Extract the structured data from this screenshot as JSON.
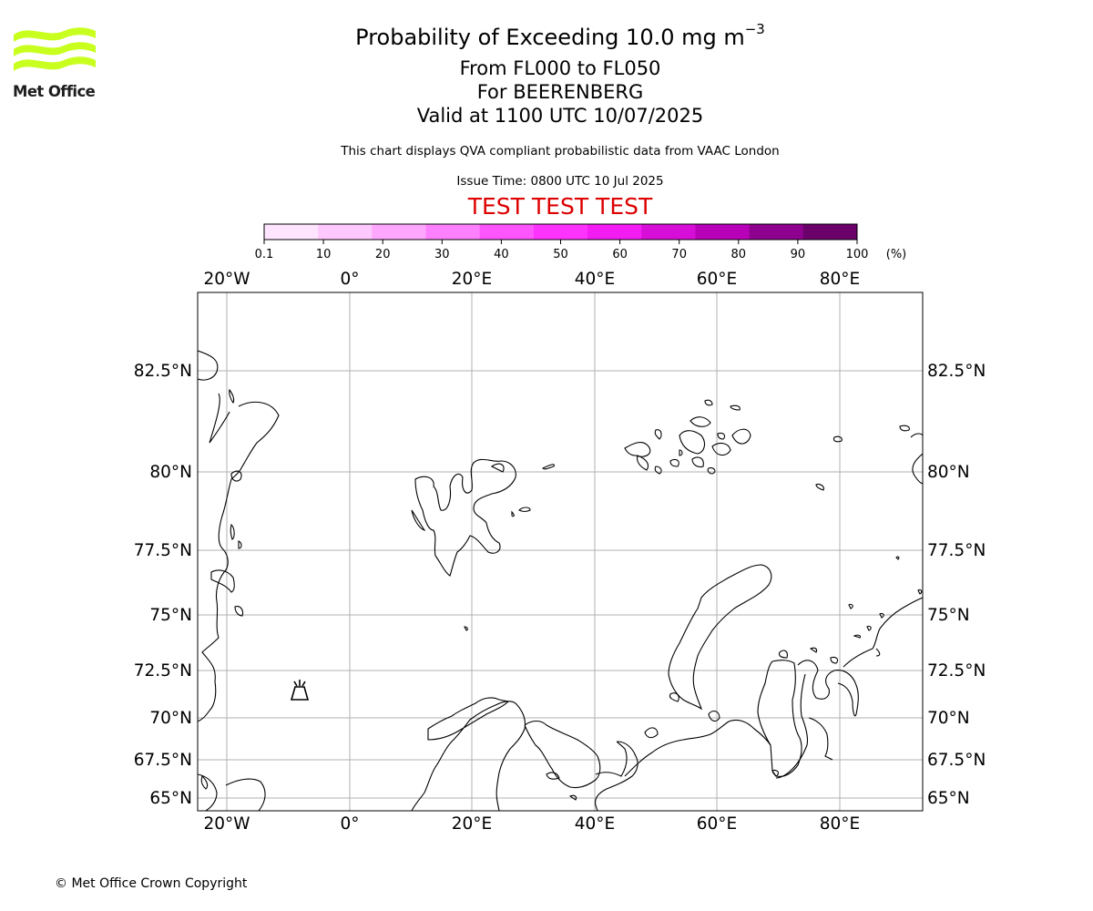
{
  "logo": {
    "text": "Met Office",
    "color": "#c8ff1e"
  },
  "title": {
    "main_prefix": "Probability of Exceeding 10.0 mg m",
    "main_exponent": "−3",
    "line2": "From FL000 to FL050",
    "line3": "For BEERENBERG",
    "line4": "Valid at 1100 UTC 10/07/2025"
  },
  "description": "This chart displays QVA compliant probabilistic data from VAAC London",
  "issue_time": "Issue Time: 0800 UTC 10 Jul 2025",
  "test_banner": {
    "text": "TEST TEST TEST",
    "color": "#dd0000"
  },
  "colorbar": {
    "ticks": [
      "0.1",
      "10",
      "20",
      "30",
      "40",
      "50",
      "60",
      "70",
      "80",
      "90",
      "100"
    ],
    "unit": "(%)",
    "colors": [
      "#ffe4ff",
      "#ffc8ff",
      "#ffa6ff",
      "#ff80ff",
      "#ff55ff",
      "#ff33ff",
      "#f31cf3",
      "#d70ed7",
      "#b700b7",
      "#8e008e",
      "#6b006b"
    ]
  },
  "map": {
    "lon_labels": [
      "20°W",
      "0°",
      "20°E",
      "40°E",
      "60°E",
      "80°E"
    ],
    "lat_labels": [
      "82.5°N",
      "80°N",
      "77.5°N",
      "75°N",
      "72.5°N",
      "70°N",
      "67.5°N",
      "65°N"
    ],
    "volcano": {
      "name": "BEERENBERG",
      "icon": "volcano-icon"
    }
  },
  "copyright": "© Met Office Crown Copyright"
}
